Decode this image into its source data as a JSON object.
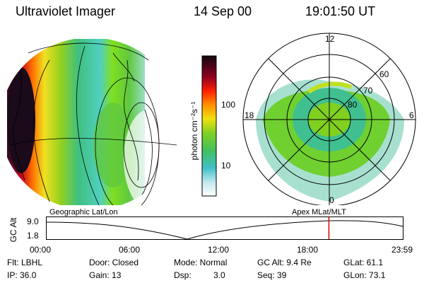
{
  "header": {
    "instrument": "Ultraviolet Imager",
    "date": "14 Sep 00",
    "time": "19:01:50 UT"
  },
  "colorbar": {
    "unit_label": "photon cm⁻²s⁻¹",
    "tick_100": "100",
    "tick_10": "10"
  },
  "polar_plot": {
    "mlt_12": "12",
    "mlt_18": "18",
    "mlt_6": "6",
    "mlt_0": "0",
    "lat_60": "60",
    "lat_70": "70",
    "lat_80": "80"
  },
  "projections": {
    "left": "Geographic Lat/Lon",
    "right": "Apex MLat/MLT"
  },
  "timeline": {
    "ylabel": "GC Alt",
    "y_high": "9.0",
    "y_low": "1.8",
    "x_ticks": [
      "00:00",
      "06:00",
      "12:00",
      "18:00",
      "23:59"
    ],
    "current_time_hours": 19.03
  },
  "info": {
    "flt": "Flt: LBHL",
    "ip": "IP: 36.0",
    "door": "Door: Closed",
    "gain": "Gain: 13",
    "mode": "Mode: Normal",
    "dsp_label": "Dsp:",
    "dsp_value": "3.0",
    "gc_alt": "GC Alt: 9.4 Re",
    "seq": "Seq: 39",
    "glat": "GLat:  61.1",
    "glon": "GLon:  73.1"
  },
  "colors": {
    "marker": "#e00000"
  }
}
